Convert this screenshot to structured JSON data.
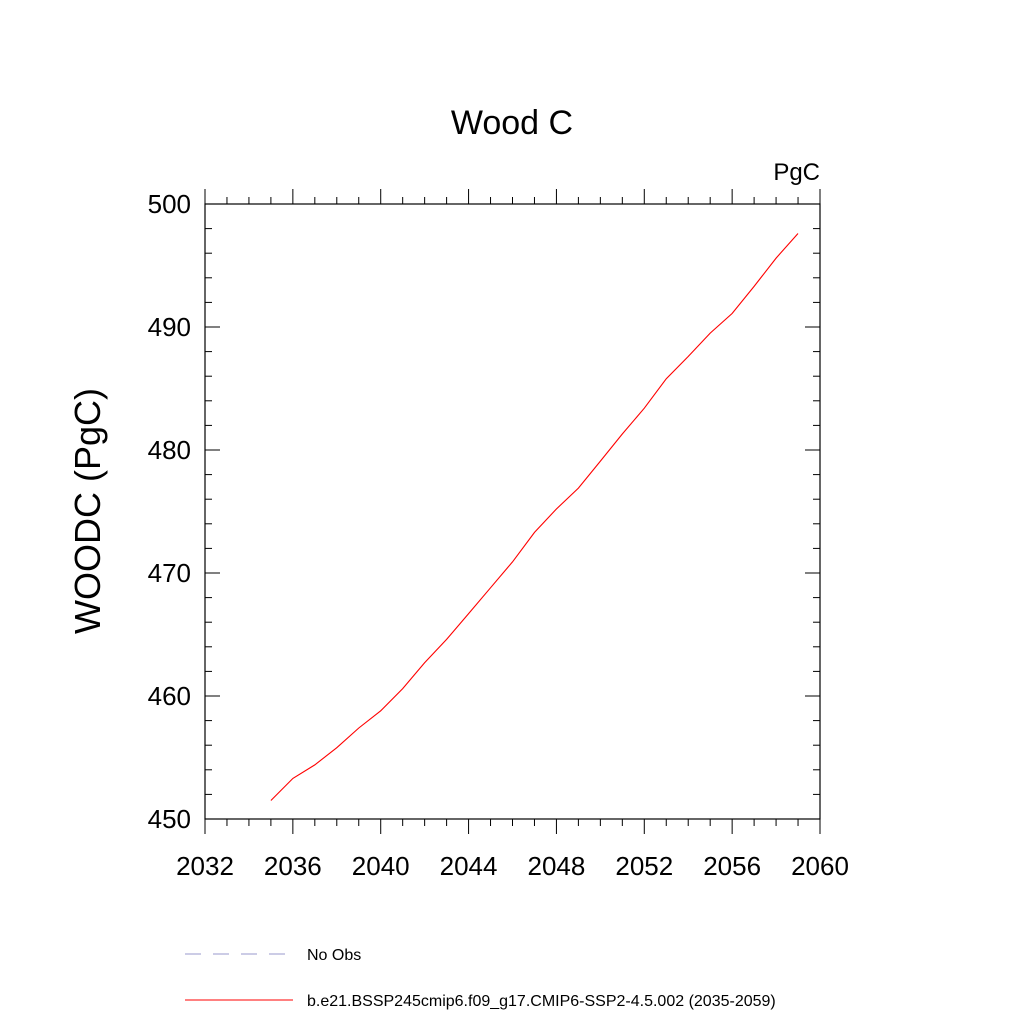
{
  "chart_data": {
    "type": "line",
    "title": "Wood C",
    "units_label": "PgC",
    "xlabel": "",
    "ylabel": "WOODC  (PgC)",
    "xlim": [
      2032,
      2060
    ],
    "ylim": [
      450,
      500
    ],
    "x_ticks": [
      2032,
      2036,
      2040,
      2044,
      2048,
      2052,
      2056,
      2060
    ],
    "y_ticks": [
      450,
      460,
      470,
      480,
      490,
      500
    ],
    "grid": false,
    "legend_position": "bottom",
    "series": [
      {
        "name": "b.e21.BSSP245cmip6.f09_g17.CMIP6-SSP2-4.5.002 (2035-2059)",
        "color": "#ff0000",
        "style": "solid",
        "x": [
          2035,
          2036,
          2037,
          2038,
          2039,
          2040,
          2041,
          2042,
          2043,
          2044,
          2045,
          2046,
          2047,
          2048,
          2049,
          2050,
          2051,
          2052,
          2053,
          2054,
          2055,
          2056,
          2057,
          2058,
          2059
        ],
        "y": [
          451.5,
          453.3,
          454.4,
          455.8,
          457.4,
          458.8,
          460.6,
          462.7,
          464.6,
          466.7,
          468.8,
          470.9,
          473.3,
          475.2,
          476.9,
          479.1,
          481.3,
          483.4,
          485.8,
          487.6,
          489.5,
          491.1,
          493.3,
          495.6,
          497.6
        ]
      }
    ],
    "legend": [
      {
        "label": "No Obs",
        "color": "#9999cc",
        "style": "dashed"
      },
      {
        "label": "b.e21.BSSP245cmip6.f09_g17.CMIP6-SSP2-4.5.002 (2035-2059)",
        "color": "#ff0000",
        "style": "solid"
      }
    ]
  }
}
